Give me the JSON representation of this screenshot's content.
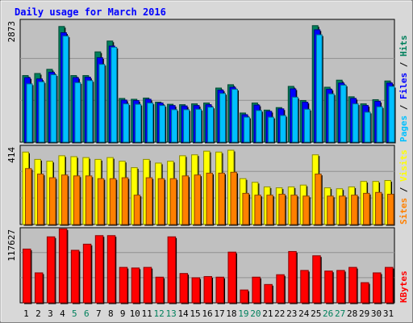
{
  "chart_data": {
    "type": "bar",
    "title": "Daily usage for March 2016",
    "categories": [
      "1",
      "2",
      "3",
      "4",
      "5",
      "6",
      "7",
      "8",
      "9",
      "10",
      "11",
      "12",
      "13",
      "14",
      "15",
      "16",
      "17",
      "18",
      "19",
      "20",
      "21",
      "22",
      "23",
      "24",
      "25",
      "26",
      "27",
      "28",
      "29",
      "30",
      "31"
    ],
    "weekend_days": [
      "5",
      "6",
      "12",
      "13",
      "19",
      "20",
      "26",
      "27"
    ],
    "panels": [
      {
        "id": "hits",
        "max_label": "2873",
        "ylim": [
          0,
          2873
        ],
        "side_labels": [
          "Pages",
          "Files",
          "Hits"
        ],
        "series": [
          {
            "name": "Hits",
            "values": [
              1600,
              1650,
              1750,
              2780,
              1600,
              1600,
              2170,
              2430,
              1050,
              1030,
              1060,
              960,
              910,
              900,
              920,
              940,
              1300,
              1380,
              700,
              940,
              770,
              830,
              1340,
              1000,
              2800,
              1320,
              1490,
              1090,
              920,
              1020,
              1470
            ]
          },
          {
            "name": "Files",
            "values": [
              1550,
              1520,
              1680,
              2630,
              1550,
              1560,
              2030,
              2310,
              1010,
              1000,
              1030,
              940,
              880,
              870,
              880,
              900,
              1250,
              1320,
              660,
              890,
              740,
              800,
              1280,
              960,
              2700,
              1270,
              1420,
              1050,
              880,
              980,
              1420
            ]
          },
          {
            "name": "Pages",
            "values": [
              1400,
              1450,
              1620,
              2550,
              1430,
              1480,
              1870,
              2280,
              920,
              910,
              940,
              880,
              780,
              780,
              790,
              840,
              1170,
              1270,
              600,
              760,
              600,
              640,
              1080,
              790,
              2580,
              1160,
              1370,
              920,
              720,
              850,
              1340
            ]
          }
        ]
      },
      {
        "id": "visits",
        "max_label": "414",
        "ylim": [
          0,
          414
        ],
        "side_labels": [
          "Sites",
          "Visits"
        ],
        "series": [
          {
            "name": "Visits",
            "values": [
              395,
              355,
              345,
              375,
              370,
              365,
              355,
              365,
              345,
              310,
              355,
              335,
              345,
              375,
              380,
              400,
              395,
              405,
              250,
              230,
              205,
              200,
              205,
              215,
              380,
              200,
              195,
              205,
              235,
              235,
              240
            ]
          },
          {
            "name": "Sites",
            "values": [
              305,
              275,
              255,
              270,
              265,
              265,
              250,
              250,
              255,
              160,
              255,
              250,
              250,
              265,
              270,
              280,
              280,
              285,
              170,
              160,
              160,
              165,
              160,
              155,
              275,
              155,
              155,
              160,
              170,
              175,
              165
            ]
          }
        ]
      },
      {
        "id": "kbytes",
        "max_label": "117627",
        "ylim": [
          0,
          117627
        ],
        "side_labels": [
          "KBytes"
        ],
        "series": [
          {
            "name": "KBytes",
            "values": [
              88000,
              49000,
              108000,
              121000,
              86000,
              96000,
              110000,
              110000,
              58000,
              57000,
              58000,
              42000,
              108000,
              48000,
              41000,
              43000,
              42000,
              83000,
              21000,
              42000,
              30000,
              46000,
              84000,
              53000,
              77000,
              52000,
              53000,
              58000,
              33000,
              49000,
              58000
            ]
          }
        ]
      }
    ],
    "colors": {
      "hits": "#00805c",
      "files": "#0000ff",
      "pages": "#00c0ff",
      "visits": "#ffff00",
      "sites": "#ff8000",
      "kbytes": "#ff0000",
      "title": "#0000ff",
      "day_label": "#000000",
      "weekend_label": "#00805c",
      "panel_bg": "#c0c0c0",
      "outer_bg": "#d8d8d8"
    },
    "grid": true
  }
}
